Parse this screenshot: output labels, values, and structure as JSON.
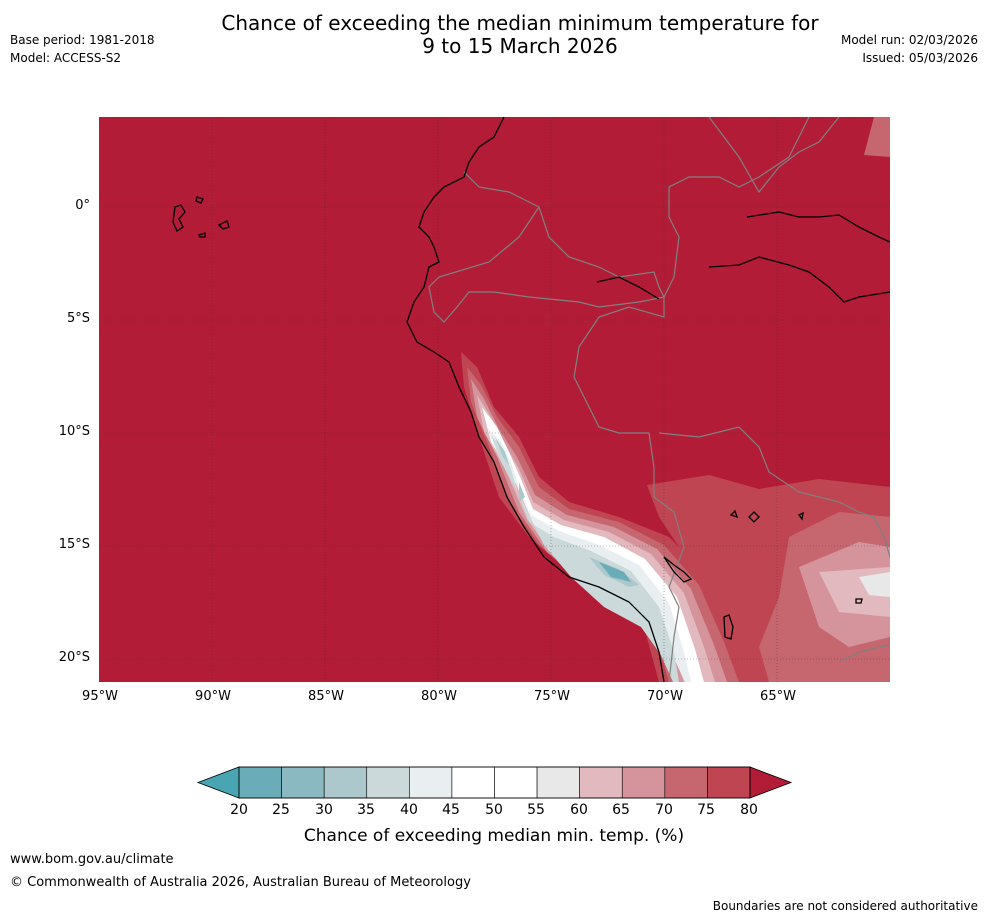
{
  "header": {
    "title_line1": "Chance of exceeding the median minimum temperature for",
    "title_line2": "9 to 15 March 2026",
    "base_period": "Base period: 1981-2018",
    "model": "Model: ACCESS-S2",
    "model_run": "Model run: 02/03/2026",
    "issued": "Issued: 05/03/2026"
  },
  "map": {
    "lat_labels": [
      "0°",
      "5°S",
      "10°S",
      "15°S",
      "20°S"
    ],
    "lon_labels": [
      "95°W",
      "90°W",
      "85°W",
      "80°W",
      "75°W",
      "70°W",
      "65°W"
    ],
    "ocean_color": "#b21c37",
    "coast_color": "#000000",
    "border_color": "#808080"
  },
  "colorbar": {
    "ticks": [
      "20",
      "25",
      "30",
      "35",
      "40",
      "45",
      "50",
      "55",
      "60",
      "65",
      "70",
      "75",
      "80"
    ],
    "colors": [
      "#6aadb8",
      "#8bb9c2",
      "#adc8cc",
      "#cbd9da",
      "#e9eff1",
      "#ffffff",
      "#ffffff",
      "#e8e8e8",
      "#e2b9be",
      "#d5949b",
      "#c6666f",
      "#bf4552"
    ],
    "under_color": "#4aa5b3",
    "over_color": "#b21c37",
    "title": "Chance of exceeding median min. temp. (%)"
  },
  "footer": {
    "website": "www.bom.gov.au/climate",
    "copyright": "© Commonwealth of Australia 2026, Australian Bureau of Meteorology",
    "disclaimer": "Boundaries are not considered authoritative"
  }
}
